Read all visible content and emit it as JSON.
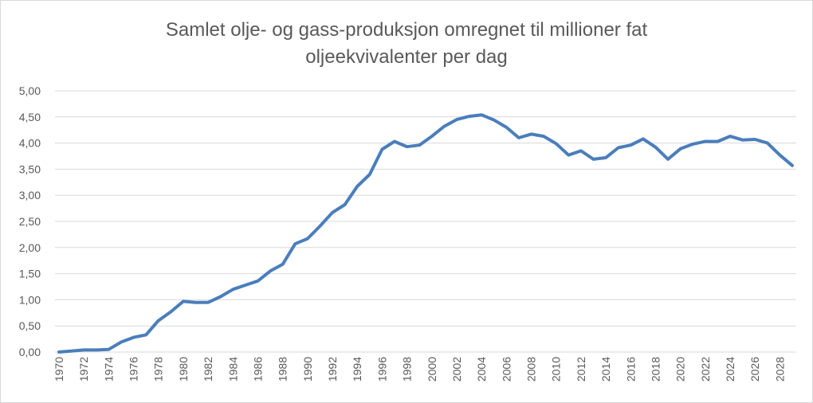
{
  "chart_data": {
    "type": "line",
    "title_line1": "Samlet olje- og gass-produksjon omregnet til millioner fat",
    "title_line2": "oljeekvivalenter per dag",
    "xlabel": "",
    "ylabel": "",
    "ylim": [
      0,
      5
    ],
    "yticks": [
      "0,00",
      "0,50",
      "1,00",
      "1,50",
      "2,00",
      "2,50",
      "3,00",
      "3,50",
      "4,00",
      "4,50",
      "5,00"
    ],
    "xtick_labels": [
      "1970",
      "1972",
      "1974",
      "1976",
      "1978",
      "1980",
      "1982",
      "1984",
      "1986",
      "1988",
      "1990",
      "1992",
      "1994",
      "1996",
      "1998",
      "2000",
      "2002",
      "2004",
      "2006",
      "2008",
      "2010",
      "2012",
      "2014",
      "2016",
      "2018",
      "2020",
      "2022",
      "2024",
      "2026",
      "2028"
    ],
    "grid": true,
    "line_color": "#4a7ebb",
    "x": [
      1970,
      1971,
      1972,
      1973,
      1974,
      1975,
      1976,
      1977,
      1978,
      1979,
      1980,
      1981,
      1982,
      1983,
      1984,
      1985,
      1986,
      1987,
      1988,
      1989,
      1990,
      1991,
      1992,
      1993,
      1994,
      1995,
      1996,
      1997,
      1998,
      1999,
      2000,
      2001,
      2002,
      2003,
      2004,
      2005,
      2006,
      2007,
      2008,
      2009,
      2010,
      2011,
      2012,
      2013,
      2014,
      2015,
      2016,
      2017,
      2018,
      2019,
      2020,
      2021,
      2022,
      2023,
      2024,
      2025,
      2026,
      2027,
      2028,
      2029
    ],
    "values": [
      0.0,
      0.02,
      0.04,
      0.04,
      0.05,
      0.19,
      0.28,
      0.33,
      0.6,
      0.77,
      0.97,
      0.95,
      0.95,
      1.06,
      1.2,
      1.28,
      1.36,
      1.55,
      1.68,
      2.07,
      2.17,
      2.41,
      2.67,
      2.82,
      3.17,
      3.4,
      3.88,
      4.03,
      3.93,
      3.96,
      4.13,
      4.32,
      4.45,
      4.51,
      4.54,
      4.44,
      4.3,
      4.1,
      4.17,
      4.13,
      3.99,
      3.77,
      3.85,
      3.69,
      3.72,
      3.91,
      3.96,
      4.08,
      3.92,
      3.69,
      3.89,
      3.98,
      4.03,
      4.03,
      4.13,
      4.06,
      4.07,
      4.0,
      3.77,
      3.57
    ]
  }
}
